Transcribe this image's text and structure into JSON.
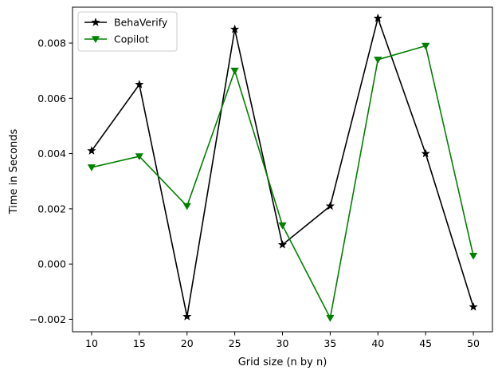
{
  "chart_data": {
    "type": "line",
    "title": "",
    "xlabel": "Grid size (n by n)",
    "ylabel": "Time in Seconds",
    "x": [
      10,
      15,
      20,
      25,
      30,
      35,
      40,
      45,
      50
    ],
    "xlim": [
      8,
      52
    ],
    "ylim": [
      -0.00245,
      0.0093
    ],
    "xticks": [
      10,
      15,
      20,
      25,
      30,
      35,
      40,
      45,
      50
    ],
    "xtick_labels": [
      "10",
      "15",
      "20",
      "25",
      "30",
      "35",
      "40",
      "45",
      "50"
    ],
    "yticks": [
      -0.002,
      0,
      0.002,
      0.004,
      0.006,
      0.008
    ],
    "ytick_labels": [
      "−0.002",
      "0.000",
      "0.002",
      "0.004",
      "0.006",
      "0.008"
    ],
    "grid": false,
    "legend_position": "upper-left",
    "series": [
      {
        "name": "BehaVerify",
        "color": "#000000",
        "marker": "star",
        "values": [
          0.0041,
          0.0065,
          -0.0019,
          0.0085,
          0.0007,
          0.0021,
          0.0089,
          0.004,
          -0.00155
        ]
      },
      {
        "name": "Copilot",
        "color": "#008000",
        "marker": "triangle-down",
        "values": [
          0.0035,
          0.0039,
          0.0021,
          0.007,
          0.0014,
          -0.00195,
          0.0074,
          0.0079,
          0.0003
        ]
      }
    ]
  }
}
